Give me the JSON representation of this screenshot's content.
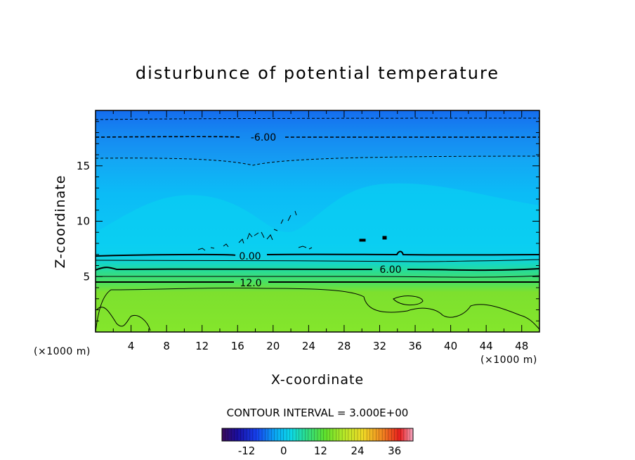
{
  "chart_data": {
    "type": "heatmap",
    "title": "disturbunce of potential temperature",
    "xlabel": "X-coordinate",
    "ylabel": "Z-coordinate",
    "x_unit_label": "(×1000 m)",
    "z_unit_label": "(×1000 m)",
    "xlim": [
      0,
      50
    ],
    "ylim": [
      0,
      20
    ],
    "x_ticks": [
      "4",
      "8",
      "12",
      "16",
      "20",
      "24",
      "28",
      "32",
      "36",
      "40",
      "44",
      "48"
    ],
    "y_ticks": [
      "5",
      "10",
      "15"
    ],
    "contour_interval_text": "CONTOUR INTERVAL = 3.000E+00",
    "contour_labels": [
      {
        "text": "-6.00",
        "x": 19,
        "z": 17.5
      },
      {
        "text": "0.00",
        "x": 17,
        "z": 6.8
      },
      {
        "text": "6.00",
        "x": 33,
        "z": 5.7
      },
      {
        "text": "12.0",
        "x": 17,
        "z": 4.5
      }
    ],
    "colorbar": {
      "min": -20,
      "max": 42,
      "tick_values": [
        -12,
        0,
        12,
        24,
        36
      ],
      "tick_labels": [
        "-12",
        "0",
        "12",
        "24",
        "36"
      ]
    },
    "field_levels": [
      {
        "z": 0,
        "value": 14
      },
      {
        "z": 4,
        "value": 14
      },
      {
        "z": 5,
        "value": 10
      },
      {
        "z": 6,
        "value": 6
      },
      {
        "z": 7,
        "value": 1
      },
      {
        "z": 8,
        "value": -2
      },
      {
        "z": 12,
        "value": -4
      },
      {
        "z": 15.5,
        "value": -5
      },
      {
        "z": 17.5,
        "value": -6
      },
      {
        "z": 19,
        "value": -8
      },
      {
        "z": 20,
        "value": -10
      }
    ],
    "colors": {
      "background": "#ffffff",
      "frame": "#000000"
    }
  }
}
